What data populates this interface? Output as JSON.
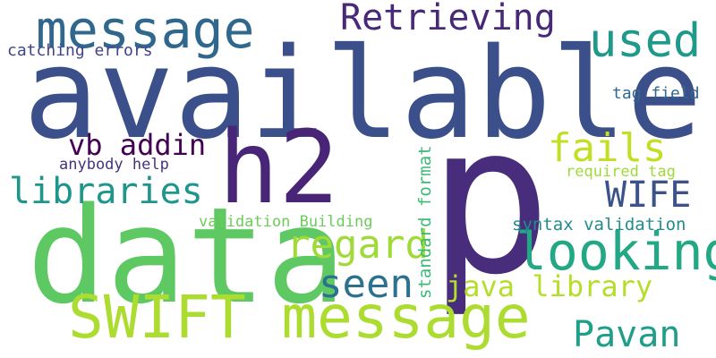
{
  "words": [
    {
      "text": "p",
      "color": "#472d7b"
    },
    {
      "text": "available",
      "color": "#3b4f8a"
    },
    {
      "text": "data",
      "color": "#5ec962"
    },
    {
      "text": "h2",
      "color": "#482576"
    },
    {
      "text": "SWIFT message",
      "color": "#addc30"
    },
    {
      "text": "message",
      "color": "#30678d"
    },
    {
      "text": "looking",
      "color": "#22a884"
    },
    {
      "text": "Retrieving",
      "color": "#482878"
    },
    {
      "text": "used",
      "color": "#1f9a8a"
    },
    {
      "text": "libraries",
      "color": "#1f968b"
    },
    {
      "text": "regard",
      "color": "#a0da39"
    },
    {
      "text": "fails",
      "color": "#c2df23"
    },
    {
      "text": "WIFE",
      "color": "#3b528b"
    },
    {
      "text": "vb addin",
      "color": "#440154"
    },
    {
      "text": "seen",
      "color": "#2c728e"
    },
    {
      "text": "java library",
      "color": "#b5de2b"
    },
    {
      "text": "Pavan",
      "color": "#1f9e89"
    },
    {
      "text": "catching errors",
      "color": "#414487"
    },
    {
      "text": "tag field",
      "color": "#31688e"
    },
    {
      "text": "anybody help",
      "color": "#46337e"
    },
    {
      "text": "required tag",
      "color": "#a0da39"
    },
    {
      "text": "validation Building",
      "color": "#6ccd5a"
    },
    {
      "text": "syntax validation",
      "color": "#228c8d"
    },
    {
      "text": "standard format",
      "color": "#3bbb75"
    }
  ]
}
